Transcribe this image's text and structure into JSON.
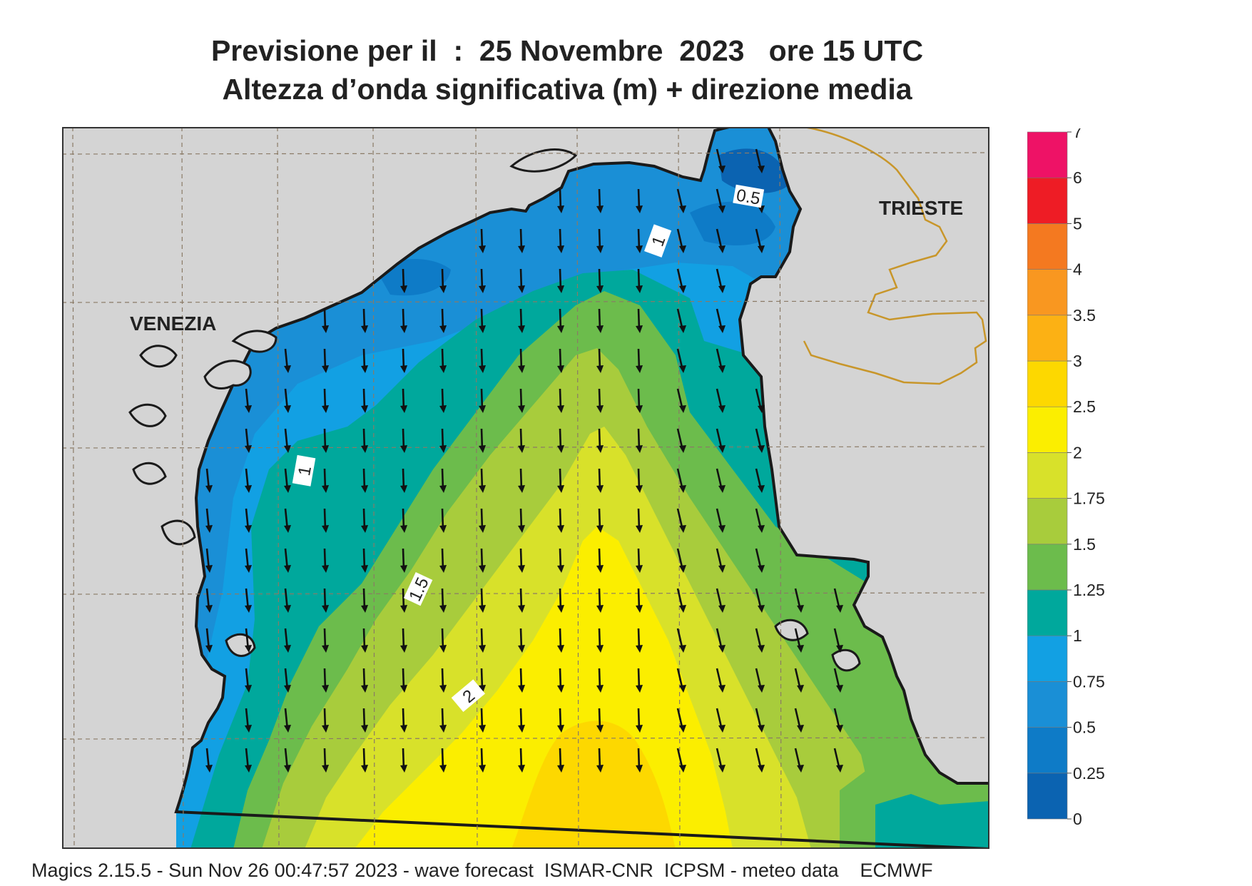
{
  "title_line1": "Previsione per il  :  25 Novembre  2023   ore 15 UTC",
  "title_line2": "Altezza d’onda significativa (m) + direzione media",
  "footer": "Magics 2.15.5 - Sun Nov 26 00:47:57 2023 - wave forecast  ISMAR-CNR  ICPSM - meteo data    ECMWF",
  "place_labels": [
    "VENEZIA",
    "TRIESTE"
  ],
  "contour_labels": [
    "0.5",
    "1",
    "1",
    "1.5",
    "2"
  ],
  "colors": {
    "land": "#d4d4d4",
    "coast": "#1a1a1a",
    "border": "#c8962a",
    "grid": "#8a7a66",
    "arrow": "#111111"
  },
  "chart_data": {
    "type": "heatmap",
    "title": "Previsione per il  :  25 Novembre  2023   ore 15 UTC",
    "subtitle": "Altezza d’onda significativa (m) + direzione media",
    "variable": "significant wave height (m) with mean wave direction arrows",
    "mean_direction": "toward south (southward, slightly south-east on the eastern side)",
    "colorbar": {
      "ticks": [
        "0",
        "0.25",
        "0.5",
        "0.75",
        "1",
        "1.25",
        "1.5",
        "1.75",
        "2",
        "2.5",
        "3",
        "3.5",
        "4",
        "5",
        "6",
        "7"
      ],
      "bands": [
        {
          "from": 0,
          "to": 0.25,
          "color": "#0b63b1"
        },
        {
          "from": 0.25,
          "to": 0.5,
          "color": "#0e7bc7"
        },
        {
          "from": 0.5,
          "to": 0.75,
          "color": "#1a8fd6"
        },
        {
          "from": 0.75,
          "to": 1,
          "color": "#12a0e3"
        },
        {
          "from": 1,
          "to": 1.25,
          "color": "#00a89c"
        },
        {
          "from": 1.25,
          "to": 1.5,
          "color": "#6cbc4c"
        },
        {
          "from": 1.5,
          "to": 1.75,
          "color": "#a8cc3c"
        },
        {
          "from": 1.75,
          "to": 2,
          "color": "#d8e12a"
        },
        {
          "from": 2,
          "to": 2.5,
          "color": "#fbee00"
        },
        {
          "from": 2.5,
          "to": 3,
          "color": "#fdd800"
        },
        {
          "from": 3,
          "to": 3.5,
          "color": "#fcb114"
        },
        {
          "from": 3.5,
          "to": 4,
          "color": "#f99720"
        },
        {
          "from": 4,
          "to": 5,
          "color": "#f47920"
        },
        {
          "from": 5,
          "to": 6,
          "color": "#ee1c25"
        },
        {
          "from": 6,
          "to": 7,
          "color": "#ee1266"
        }
      ]
    },
    "contour_levels": [
      0.5,
      1,
      1.5,
      2
    ],
    "max_wave_height_range": "2.5-3",
    "max_location": "southern centre of the basin"
  }
}
